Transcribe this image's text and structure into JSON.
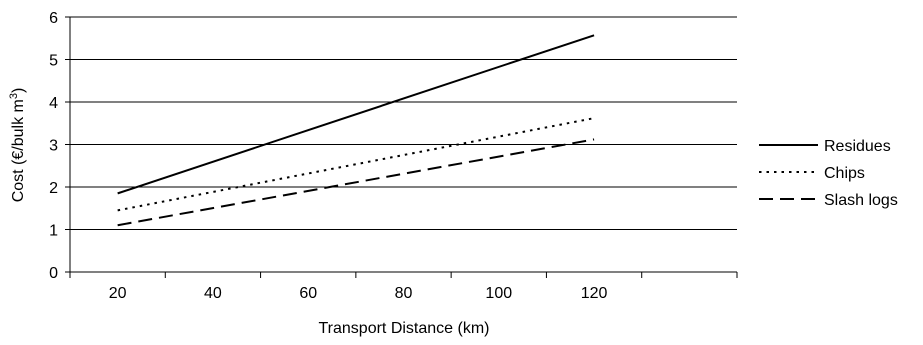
{
  "chart_data": {
    "type": "line",
    "title": "",
    "xlabel": "Transport Distance (km)",
    "ylabel_main": "Cost  (€/bulk m",
    "ylabel_sup": "3",
    "ylabel_close": ")",
    "x": [
      20,
      120
    ],
    "xticks": [
      "20",
      "40",
      "60",
      "80",
      "100",
      "120"
    ],
    "xtick_values": [
      20,
      40,
      60,
      80,
      100,
      120
    ],
    "yticks": [
      "0",
      "1",
      "2",
      "3",
      "4",
      "5",
      "6"
    ],
    "ytick_values": [
      0,
      1,
      2,
      3,
      4,
      5,
      6
    ],
    "xlim": [
      0,
      140
    ],
    "ylim": [
      0,
      6
    ],
    "grid": "horizontal",
    "legend_position": "right",
    "series": [
      {
        "name": "Residues",
        "values": [
          1.85,
          5.57
        ],
        "style": "solid"
      },
      {
        "name": "Chips",
        "values": [
          1.45,
          3.62
        ],
        "style": "dotted"
      },
      {
        "name": "Slash logs",
        "values": [
          1.1,
          3.12
        ],
        "style": "dashed"
      }
    ],
    "colors": {
      "line": "#000000",
      "grid": "#000000",
      "background": "#ffffff"
    }
  }
}
